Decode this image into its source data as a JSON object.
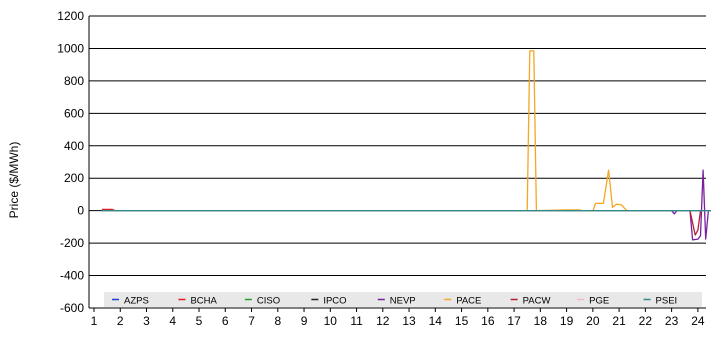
{
  "chart_data": {
    "type": "line",
    "title": "",
    "xlabel": "",
    "ylabel": "Price ($/MWh)",
    "xlim": [
      1,
      24.5
    ],
    "ylim": [
      -600,
      1200
    ],
    "x_ticks": [
      1,
      2,
      3,
      4,
      5,
      6,
      7,
      8,
      9,
      10,
      11,
      12,
      13,
      14,
      15,
      16,
      17,
      18,
      19,
      20,
      21,
      22,
      23,
      24
    ],
    "y_ticks": [
      -600,
      -400,
      -200,
      0,
      200,
      400,
      600,
      800,
      1000,
      1200
    ],
    "grid": "horizontal",
    "legend_position": "bottom-inside",
    "series": [
      {
        "name": "AZPS",
        "color": "#1f3fd9",
        "points": [
          [
            1.3,
            0
          ],
          [
            24.5,
            0
          ]
        ]
      },
      {
        "name": "BCHA",
        "color": "#e02020",
        "points": [
          [
            1.3,
            8
          ],
          [
            1.7,
            8
          ],
          [
            1.8,
            0
          ],
          [
            24.5,
            0
          ]
        ]
      },
      {
        "name": "CISO",
        "color": "#2a9d2a",
        "points": [
          [
            1.3,
            0
          ],
          [
            24.5,
            0
          ]
        ]
      },
      {
        "name": "IPCO",
        "color": "#222222",
        "points": [
          [
            1.3,
            0
          ],
          [
            24.5,
            0
          ]
        ]
      },
      {
        "name": "NEVP",
        "color": "#7a1fa0",
        "points": [
          [
            1.3,
            0
          ],
          [
            23,
            0
          ],
          [
            23.1,
            -20
          ],
          [
            23.2,
            0
          ],
          [
            23.7,
            0
          ],
          [
            23.8,
            -180
          ],
          [
            24,
            -175
          ],
          [
            24.1,
            -155
          ],
          [
            24.2,
            250
          ],
          [
            24.3,
            -175
          ],
          [
            24.4,
            0
          ],
          [
            24.5,
            0
          ]
        ]
      },
      {
        "name": "PACE",
        "color": "#f5a623",
        "points": [
          [
            1.3,
            0
          ],
          [
            17.5,
            0
          ],
          [
            17.6,
            985
          ],
          [
            17.75,
            985
          ],
          [
            17.85,
            0
          ],
          [
            19,
            5
          ],
          [
            19.5,
            5
          ],
          [
            19.6,
            0
          ],
          [
            20,
            0
          ],
          [
            20.1,
            45
          ],
          [
            20.4,
            45
          ],
          [
            20.6,
            250
          ],
          [
            20.75,
            20
          ],
          [
            20.9,
            40
          ],
          [
            21.1,
            35
          ],
          [
            21.2,
            15
          ],
          [
            21.3,
            0
          ],
          [
            24.5,
            0
          ]
        ]
      },
      {
        "name": "PACW",
        "color": "#b22234",
        "points": [
          [
            1.3,
            0
          ],
          [
            23.7,
            0
          ],
          [
            23.9,
            -150
          ],
          [
            24,
            -120
          ],
          [
            24.1,
            0
          ],
          [
            24.5,
            0
          ]
        ]
      },
      {
        "name": "PGE",
        "color": "#f4b6c2",
        "points": [
          [
            1.3,
            0
          ],
          [
            24.5,
            0
          ]
        ]
      },
      {
        "name": "PSEI",
        "color": "#2e8b8b",
        "points": [
          [
            1.3,
            0
          ],
          [
            24.5,
            0
          ]
        ]
      }
    ]
  }
}
